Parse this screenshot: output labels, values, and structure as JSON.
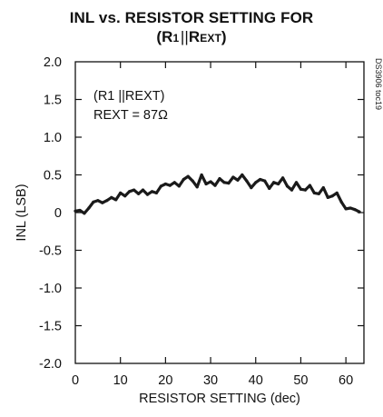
{
  "chart_data": {
    "type": "line",
    "title_line1": "INL vs. RESISTOR SETTING FOR",
    "title_line2_main": "R",
    "title_line2_sub": "1",
    "title_line2_sep": "||",
    "title_line2_ext_main": "R",
    "title_line2_ext_sub": "EXT",
    "xlabel": "RESISTOR SETTING (dec)",
    "ylabel": "INL (LSB)",
    "xlim": [
      0,
      64
    ],
    "ylim": [
      -2.0,
      2.0
    ],
    "x_ticks": [
      0,
      10,
      20,
      30,
      40,
      50,
      60
    ],
    "x_tick_labels": [
      "0",
      "10",
      "20",
      "30",
      "40",
      "50",
      "60"
    ],
    "y_ticks": [
      2.0,
      1.5,
      1.0,
      0.5,
      0,
      -0.5,
      -1.0,
      -1.5,
      -2.0
    ],
    "y_tick_labels": [
      "2.0",
      "1.5",
      "1.0",
      "0.5",
      "0",
      "-0.5",
      "-1.0",
      "-1.5",
      "-2.0"
    ],
    "grid": false,
    "annotation_line1": "(R1 ||REXT)",
    "annotation_line2": "REXT = 87Ω",
    "side_ref": "DS3906 toc19",
    "series": [
      {
        "color": "#1a1a1a",
        "x": [
          0,
          1,
          2,
          3,
          4,
          5,
          6,
          7,
          8,
          9,
          10,
          11,
          12,
          13,
          14,
          15,
          16,
          17,
          18,
          19,
          20,
          21,
          22,
          23,
          24,
          25,
          26,
          27,
          28,
          29,
          30,
          31,
          32,
          33,
          34,
          35,
          36,
          37,
          38,
          39,
          40,
          41,
          42,
          43,
          44,
          45,
          46,
          47,
          48,
          49,
          50,
          51,
          52,
          53,
          54,
          55,
          56,
          57,
          58,
          59,
          60,
          61,
          62,
          63
        ],
        "values": [
          0.02,
          0.03,
          -0.01,
          0.06,
          0.14,
          0.16,
          0.13,
          0.16,
          0.2,
          0.17,
          0.26,
          0.22,
          0.28,
          0.3,
          0.25,
          0.3,
          0.24,
          0.28,
          0.26,
          0.35,
          0.38,
          0.36,
          0.4,
          0.35,
          0.44,
          0.48,
          0.42,
          0.34,
          0.5,
          0.38,
          0.41,
          0.36,
          0.45,
          0.4,
          0.39,
          0.47,
          0.43,
          0.5,
          0.42,
          0.33,
          0.4,
          0.44,
          0.42,
          0.32,
          0.4,
          0.38,
          0.46,
          0.35,
          0.3,
          0.4,
          0.31,
          0.3,
          0.36,
          0.26,
          0.25,
          0.33,
          0.2,
          0.22,
          0.26,
          0.14,
          0.05,
          0.06,
          0.04,
          0.01
        ]
      }
    ]
  }
}
